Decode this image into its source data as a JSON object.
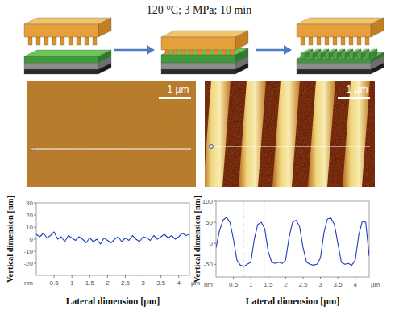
{
  "schematic": {
    "condition": "120 °C; 3 MPa; 10 min"
  },
  "afm_images": [
    {
      "scale_bar": "1 µm"
    },
    {
      "scale_bar": "1 µm"
    }
  ],
  "chart_data": [
    {
      "type": "line",
      "x_label": "Lateral dimension [µm]",
      "y_label": "Vertical dimension [nm]",
      "x_unit": "µm",
      "y_unit": "nm",
      "color": "#1f3fbf",
      "x": [
        0,
        0.1,
        0.2,
        0.3,
        0.4,
        0.5,
        0.6,
        0.7,
        0.8,
        0.9,
        1,
        1.1,
        1.2,
        1.3,
        1.4,
        1.5,
        1.6,
        1.7,
        1.8,
        1.9,
        2,
        2.1,
        2.2,
        2.3,
        2.4,
        2.5,
        2.6,
        2.7,
        2.8,
        2.9,
        3,
        3.1,
        3.2,
        3.3,
        3.4,
        3.5,
        3.6,
        3.7,
        3.8,
        3.9,
        4,
        4.1,
        4.2,
        4.3
      ],
      "values": [
        4,
        2,
        5,
        1,
        3,
        6,
        0,
        2,
        -2,
        3,
        1,
        -1,
        2,
        0,
        -3,
        1,
        -2,
        0,
        -4,
        1,
        -1,
        -3,
        0,
        2,
        -2,
        1,
        -1,
        3,
        0,
        -2,
        2,
        1,
        -1,
        3,
        0,
        2,
        4,
        1,
        3,
        0,
        2,
        5,
        3,
        4
      ],
      "xlim": [
        0,
        4.3
      ],
      "ylim": [
        -30,
        30
      ],
      "xticks": [
        0.5,
        1,
        1.5,
        2,
        2.5,
        3,
        3.5,
        4
      ],
      "yticks": [
        30,
        20,
        10,
        0,
        -10,
        -20
      ]
    },
    {
      "type": "line",
      "x_label": "Lateral dimension [µm]",
      "y_label": "Vertical dimension [nm]",
      "x_unit": "µm",
      "y_unit": "nm",
      "color": "#1f3fbf",
      "x": [
        0,
        0.1,
        0.2,
        0.3,
        0.4,
        0.5,
        0.6,
        0.7,
        0.8,
        0.9,
        1,
        1.1,
        1.2,
        1.3,
        1.4,
        1.5,
        1.6,
        1.7,
        1.8,
        1.9,
        2,
        2.1,
        2.2,
        2.3,
        2.4,
        2.5,
        2.6,
        2.7,
        2.8,
        2.9,
        3,
        3.1,
        3.2,
        3.3,
        3.4,
        3.5,
        3.6,
        3.7,
        3.8,
        3.9,
        4,
        4.1,
        4.2,
        4.3,
        4.4
      ],
      "values": [
        -10,
        30,
        55,
        62,
        50,
        10,
        -40,
        -52,
        -55,
        -50,
        -45,
        10,
        45,
        50,
        35,
        -20,
        -45,
        -48,
        -45,
        -48,
        -40,
        15,
        50,
        55,
        40,
        -10,
        -45,
        -50,
        -52,
        -50,
        -35,
        25,
        58,
        60,
        45,
        0,
        -45,
        -50,
        -48,
        -52,
        -40,
        20,
        52,
        50,
        -30
      ],
      "cursors": [
        0.78,
        1.38
      ],
      "xlim": [
        0,
        4.4
      ],
      "ylim": [
        -80,
        100
      ],
      "xticks": [
        0.5,
        1,
        1.5,
        2,
        2.5,
        3,
        3.5,
        4
      ],
      "yticks": [
        100,
        50,
        0,
        -50
      ]
    }
  ]
}
